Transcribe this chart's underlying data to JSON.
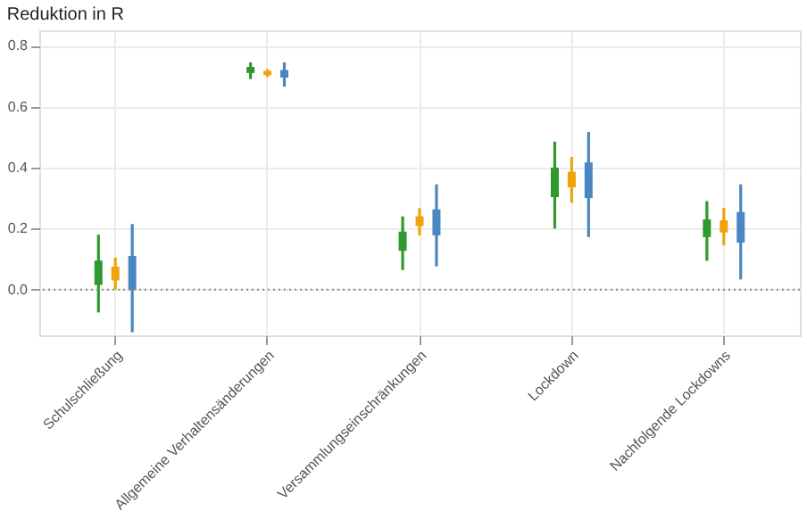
{
  "chart_data": {
    "type": "box",
    "title": "Reduktion in R",
    "categories": [
      "Schulschließung",
      "Allgemeine Verhaltensänderungen",
      "Versammlungseinschränkungen",
      "Lockdown",
      "Nachfolgende Lockdowns"
    ],
    "series": [
      {
        "color": "#2e9a2e",
        "boxes": [
          {
            "low": -0.075,
            "q1": 0.015,
            "median": 0.055,
            "q3": 0.095,
            "high": 0.18
          },
          {
            "low": 0.69,
            "q1": 0.71,
            "median": 0.72,
            "q3": 0.73,
            "high": 0.745
          },
          {
            "low": 0.064,
            "q1": 0.127,
            "median": 0.16,
            "q3": 0.19,
            "high": 0.24
          },
          {
            "low": 0.2,
            "q1": 0.303,
            "median": 0.35,
            "q3": 0.4,
            "high": 0.485
          },
          {
            "low": 0.094,
            "q1": 0.172,
            "median": 0.2,
            "q3": 0.23,
            "high": 0.29
          }
        ]
      },
      {
        "color": "#f0a30a",
        "boxes": [
          {
            "low": 0.0,
            "q1": 0.03,
            "median": 0.055,
            "q3": 0.075,
            "high": 0.105
          },
          {
            "low": 0.697,
            "q1": 0.703,
            "median": 0.71,
            "q3": 0.717,
            "high": 0.723
          },
          {
            "low": 0.178,
            "q1": 0.208,
            "median": 0.225,
            "q3": 0.24,
            "high": 0.267
          },
          {
            "low": 0.285,
            "q1": 0.335,
            "median": 0.365,
            "q3": 0.386,
            "high": 0.435
          },
          {
            "low": 0.145,
            "q1": 0.187,
            "median": 0.205,
            "q3": 0.227,
            "high": 0.268
          }
        ]
      },
      {
        "color": "#4a86c0",
        "boxes": [
          {
            "low": -0.14,
            "q1": 0.0,
            "median": 0.055,
            "q3": 0.11,
            "high": 0.215
          },
          {
            "low": 0.665,
            "q1": 0.695,
            "median": 0.71,
            "q3": 0.72,
            "high": 0.745
          },
          {
            "low": 0.076,
            "q1": 0.178,
            "median": 0.22,
            "q3": 0.263,
            "high": 0.345
          },
          {
            "low": 0.172,
            "q1": 0.3,
            "median": 0.365,
            "q3": 0.417,
            "high": 0.517
          },
          {
            "low": 0.033,
            "q1": 0.154,
            "median": 0.205,
            "q3": 0.254,
            "high": 0.345
          }
        ]
      }
    ],
    "ylim": [
      -0.15,
      0.85
    ],
    "yticks": [
      {
        "value": 0,
        "label": "0.0"
      },
      0.2,
      0.4,
      0.6,
      0.8
    ],
    "ref_lines": [
      {
        "axis": "y",
        "value": 0,
        "line_style": "dotted",
        "color": "#888888"
      }
    ],
    "grid": true
  }
}
